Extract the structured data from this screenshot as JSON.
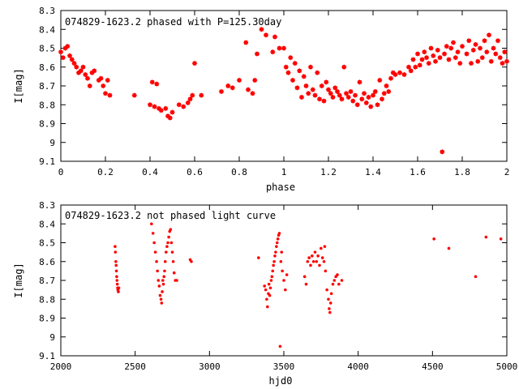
{
  "chart_data": [
    {
      "type": "scatter",
      "title": "074829-1623.2 phased with P=125.30day",
      "xlabel": "phase",
      "ylabel": "I[mag]",
      "xlim": [
        0,
        2
      ],
      "ylim": [
        9.1,
        8.3
      ],
      "y_inverted": true,
      "xticks": [
        "0",
        "0.2",
        "0.4",
        "0.6",
        "0.8",
        "1",
        "1.2",
        "1.4",
        "1.6",
        "1.8",
        "2"
      ],
      "yticks": [
        "8.3",
        "8.4",
        "8.5",
        "8.6",
        "8.7",
        "8.8",
        "8.9",
        "9",
        "9.1"
      ],
      "grid": false,
      "marker_color": "#ff0000",
      "series": [
        {
          "points": [
            [
              0.0,
              8.52
            ],
            [
              0.01,
              8.55
            ],
            [
              0.02,
              8.5
            ],
            [
              0.03,
              8.49
            ],
            [
              0.04,
              8.54
            ],
            [
              0.05,
              8.56
            ],
            [
              0.06,
              8.58
            ],
            [
              0.07,
              8.6
            ],
            [
              0.08,
              8.63
            ],
            [
              0.09,
              8.62
            ],
            [
              0.1,
              8.6
            ],
            [
              0.11,
              8.64
            ],
            [
              0.12,
              8.66
            ],
            [
              0.13,
              8.7
            ],
            [
              0.14,
              8.63
            ],
            [
              0.15,
              8.62
            ],
            [
              0.17,
              8.67
            ],
            [
              0.18,
              8.66
            ],
            [
              0.19,
              8.7
            ],
            [
              0.2,
              8.74
            ],
            [
              0.21,
              8.67
            ],
            [
              0.22,
              8.75
            ],
            [
              0.33,
              8.75
            ],
            [
              0.4,
              8.8
            ],
            [
              0.41,
              8.68
            ],
            [
              0.42,
              8.81
            ],
            [
              0.43,
              8.69
            ],
            [
              0.44,
              8.82
            ],
            [
              0.45,
              8.83
            ],
            [
              0.47,
              8.82
            ],
            [
              0.48,
              8.86
            ],
            [
              0.49,
              8.87
            ],
            [
              0.5,
              8.84
            ],
            [
              0.53,
              8.8
            ],
            [
              0.55,
              8.81
            ],
            [
              0.57,
              8.79
            ],
            [
              0.58,
              8.77
            ],
            [
              0.59,
              8.75
            ],
            [
              0.6,
              8.58
            ],
            [
              0.63,
              8.75
            ],
            [
              0.72,
              8.73
            ],
            [
              0.75,
              8.7
            ],
            [
              0.77,
              8.71
            ],
            [
              0.8,
              8.67
            ],
            [
              0.83,
              8.47
            ],
            [
              0.84,
              8.72
            ],
            [
              0.86,
              8.74
            ],
            [
              0.87,
              8.67
            ],
            [
              0.88,
              8.53
            ],
            [
              0.9,
              8.4
            ],
            [
              0.92,
              8.43
            ],
            [
              0.95,
              8.52
            ],
            [
              0.96,
              8.44
            ],
            [
              0.98,
              8.5
            ],
            [
              1.0,
              8.5
            ],
            [
              1.01,
              8.6
            ],
            [
              1.02,
              8.63
            ],
            [
              1.03,
              8.55
            ],
            [
              1.04,
              8.67
            ],
            [
              1.05,
              8.58
            ],
            [
              1.06,
              8.71
            ],
            [
              1.07,
              8.62
            ],
            [
              1.08,
              8.76
            ],
            [
              1.09,
              8.65
            ],
            [
              1.1,
              8.7
            ],
            [
              1.11,
              8.74
            ],
            [
              1.12,
              8.6
            ],
            [
              1.13,
              8.72
            ],
            [
              1.14,
              8.75
            ],
            [
              1.15,
              8.63
            ],
            [
              1.16,
              8.77
            ],
            [
              1.17,
              8.7
            ],
            [
              1.18,
              8.78
            ],
            [
              1.19,
              8.68
            ],
            [
              1.2,
              8.72
            ],
            [
              1.21,
              8.74
            ],
            [
              1.22,
              8.76
            ],
            [
              1.23,
              8.71
            ],
            [
              1.24,
              8.73
            ],
            [
              1.25,
              8.75
            ],
            [
              1.26,
              8.77
            ],
            [
              1.27,
              8.6
            ],
            [
              1.28,
              8.74
            ],
            [
              1.29,
              8.76
            ],
            [
              1.3,
              8.73
            ],
            [
              1.31,
              8.78
            ],
            [
              1.32,
              8.75
            ],
            [
              1.33,
              8.8
            ],
            [
              1.34,
              8.68
            ],
            [
              1.35,
              8.77
            ],
            [
              1.36,
              8.74
            ],
            [
              1.37,
              8.79
            ],
            [
              1.38,
              8.76
            ],
            [
              1.39,
              8.81
            ],
            [
              1.4,
              8.75
            ],
            [
              1.41,
              8.73
            ],
            [
              1.42,
              8.8
            ],
            [
              1.43,
              8.67
            ],
            [
              1.44,
              8.77
            ],
            [
              1.45,
              8.74
            ],
            [
              1.46,
              8.7
            ],
            [
              1.47,
              8.73
            ],
            [
              1.48,
              8.66
            ],
            [
              1.49,
              8.63
            ],
            [
              1.5,
              8.64
            ],
            [
              1.52,
              8.63
            ],
            [
              1.54,
              8.64
            ],
            [
              1.56,
              8.6
            ],
            [
              1.57,
              8.62
            ],
            [
              1.58,
              8.56
            ],
            [
              1.59,
              8.6
            ],
            [
              1.6,
              8.53
            ],
            [
              1.61,
              8.59
            ],
            [
              1.62,
              8.56
            ],
            [
              1.63,
              8.52
            ],
            [
              1.64,
              8.55
            ],
            [
              1.65,
              8.58
            ],
            [
              1.66,
              8.5
            ],
            [
              1.67,
              8.54
            ],
            [
              1.68,
              8.57
            ],
            [
              1.69,
              8.51
            ],
            [
              1.7,
              8.55
            ],
            [
              1.71,
              9.05
            ],
            [
              1.72,
              8.53
            ],
            [
              1.73,
              8.49
            ],
            [
              1.74,
              8.56
            ],
            [
              1.75,
              8.5
            ],
            [
              1.76,
              8.47
            ],
            [
              1.77,
              8.55
            ],
            [
              1.78,
              8.52
            ],
            [
              1.79,
              8.58
            ],
            [
              1.8,
              8.49
            ],
            [
              1.82,
              8.53
            ],
            [
              1.83,
              8.46
            ],
            [
              1.84,
              8.58
            ],
            [
              1.85,
              8.51
            ],
            [
              1.86,
              8.48
            ],
            [
              1.87,
              8.57
            ],
            [
              1.88,
              8.5
            ],
            [
              1.89,
              8.55
            ],
            [
              1.9,
              8.46
            ],
            [
              1.91,
              8.52
            ],
            [
              1.92,
              8.43
            ],
            [
              1.93,
              8.57
            ],
            [
              1.94,
              8.5
            ],
            [
              1.95,
              8.53
            ],
            [
              1.96,
              8.46
            ],
            [
              1.97,
              8.55
            ],
            [
              1.98,
              8.58
            ],
            [
              1.99,
              8.52
            ],
            [
              2.0,
              8.57
            ]
          ]
        }
      ]
    },
    {
      "type": "scatter",
      "title": "074829-1623.2 not phased light curve",
      "xlabel": "hjd0",
      "ylabel": "I[mag]",
      "xlim": [
        2000,
        5000
      ],
      "ylim": [
        9.1,
        8.3
      ],
      "y_inverted": true,
      "xticks": [
        "2000",
        "2500",
        "3000",
        "3500",
        "4000",
        "4500",
        "5000"
      ],
      "yticks": [
        "8.3",
        "8.4",
        "8.5",
        "8.6",
        "8.7",
        "8.8",
        "8.9",
        "9",
        "9.1"
      ],
      "grid": false,
      "marker_color": "#ff0000",
      "series": [
        {
          "points": [
            [
              2365,
              8.52
            ],
            [
              2367,
              8.55
            ],
            [
              2370,
              8.6
            ],
            [
              2372,
              8.62
            ],
            [
              2374,
              8.65
            ],
            [
              2376,
              8.68
            ],
            [
              2378,
              8.7
            ],
            [
              2380,
              8.72
            ],
            [
              2382,
              8.74
            ],
            [
              2384,
              8.75
            ],
            [
              2387,
              8.76
            ],
            [
              2390,
              8.74
            ],
            [
              2610,
              8.4
            ],
            [
              2620,
              8.45
            ],
            [
              2628,
              8.5
            ],
            [
              2636,
              8.55
            ],
            [
              2644,
              8.6
            ],
            [
              2650,
              8.65
            ],
            [
              2656,
              8.7
            ],
            [
              2662,
              8.73
            ],
            [
              2668,
              8.78
            ],
            [
              2674,
              8.8
            ],
            [
              2678,
              8.82
            ],
            [
              2682,
              8.76
            ],
            [
              2686,
              8.7
            ],
            [
              2690,
              8.72
            ],
            [
              2694,
              8.68
            ],
            [
              2698,
              8.65
            ],
            [
              2702,
              8.6
            ],
            [
              2708,
              8.55
            ],
            [
              2714,
              8.52
            ],
            [
              2720,
              8.5
            ],
            [
              2726,
              8.47
            ],
            [
              2732,
              8.44
            ],
            [
              2738,
              8.43
            ],
            [
              2744,
              8.5
            ],
            [
              2750,
              8.55
            ],
            [
              2756,
              8.6
            ],
            [
              2762,
              8.66
            ],
            [
              2770,
              8.7
            ],
            [
              2780,
              8.7
            ],
            [
              2870,
              8.59
            ],
            [
              2878,
              8.6
            ],
            [
              3330,
              8.58
            ],
            [
              3370,
              8.73
            ],
            [
              3378,
              8.75
            ],
            [
              3385,
              8.8
            ],
            [
              3390,
              8.84
            ],
            [
              3396,
              8.77
            ],
            [
              3400,
              8.72
            ],
            [
              3405,
              8.78
            ],
            [
              3410,
              8.74
            ],
            [
              3415,
              8.7
            ],
            [
              3420,
              8.68
            ],
            [
              3425,
              8.65
            ],
            [
              3430,
              8.62
            ],
            [
              3435,
              8.6
            ],
            [
              3440,
              8.57
            ],
            [
              3445,
              8.55
            ],
            [
              3450,
              8.52
            ],
            [
              3455,
              8.5
            ],
            [
              3460,
              8.48
            ],
            [
              3465,
              8.46
            ],
            [
              3470,
              8.45
            ],
            [
              3475,
              9.05
            ],
            [
              3480,
              8.6
            ],
            [
              3485,
              8.55
            ],
            [
              3490,
              8.65
            ],
            [
              3500,
              8.7
            ],
            [
              3510,
              8.75
            ],
            [
              3520,
              8.67
            ],
            [
              3640,
              8.68
            ],
            [
              3650,
              8.72
            ],
            [
              3660,
              8.6
            ],
            [
              3670,
              8.58
            ],
            [
              3680,
              8.62
            ],
            [
              3690,
              8.57
            ],
            [
              3700,
              8.6
            ],
            [
              3710,
              8.55
            ],
            [
              3720,
              8.6
            ],
            [
              3730,
              8.57
            ],
            [
              3740,
              8.62
            ],
            [
              3750,
              8.53
            ],
            [
              3760,
              8.58
            ],
            [
              3770,
              8.6
            ],
            [
              3775,
              8.52
            ],
            [
              3780,
              8.65
            ],
            [
              3790,
              8.75
            ],
            [
              3800,
              8.8
            ],
            [
              3805,
              8.85
            ],
            [
              3810,
              8.87
            ],
            [
              3815,
              8.82
            ],
            [
              3820,
              8.77
            ],
            [
              3830,
              8.72
            ],
            [
              3840,
              8.7
            ],
            [
              3850,
              8.68
            ],
            [
              3860,
              8.67
            ],
            [
              3870,
              8.72
            ],
            [
              3890,
              8.7
            ],
            [
              4510,
              8.48
            ],
            [
              4610,
              8.53
            ],
            [
              4790,
              8.68
            ],
            [
              4860,
              8.47
            ],
            [
              4960,
              8.48
            ]
          ]
        }
      ]
    }
  ]
}
